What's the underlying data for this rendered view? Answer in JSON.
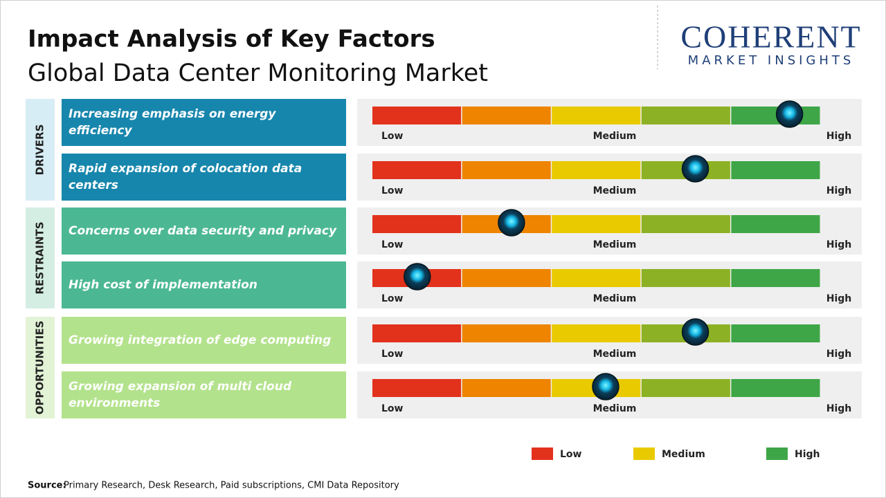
{
  "header": {
    "title": "Impact Analysis of Key Factors",
    "subtitle": "Global Data Center Monitoring Market"
  },
  "logo": {
    "name": "COHERENT",
    "tagline": "MARKET INSIGHTS"
  },
  "scale": {
    "labels": [
      "Low",
      "Medium",
      "High"
    ],
    "range": [
      0,
      100
    ],
    "colors": [
      "#e2321c",
      "#ee8400",
      "#e9ca00",
      "#8db125",
      "#3ea647"
    ]
  },
  "groups": [
    {
      "name": "DRIVERS",
      "color": "#1786ac",
      "background": "#d7edf5",
      "factors": [
        {
          "label": "Increasing emphasis on energy efficiency",
          "impact": 93
        },
        {
          "label": "Rapid expansion of colocation data centers",
          "impact": 72
        }
      ]
    },
    {
      "name": "RESTRAINTS",
      "color": "#4cb893",
      "background": "#d5eee4",
      "factors": [
        {
          "label": "Concerns over data security and privacy",
          "impact": 31
        },
        {
          "label": "High cost of implementation",
          "impact": 10
        }
      ]
    },
    {
      "name": "OPPORTUNITIES",
      "color": "#b3e28c",
      "background": "#e3f3d6",
      "factors": [
        {
          "label": "Growing integration of edge computing",
          "impact": 72
        },
        {
          "label": "Growing expansion of multi cloud environments",
          "impact": 52
        }
      ]
    }
  ],
  "legend": [
    {
      "label": "Low",
      "color": "#e2321c"
    },
    {
      "label": "Medium",
      "color": "#e9ca00"
    },
    {
      "label": "High",
      "color": "#3ea647"
    }
  ],
  "source": {
    "label": "Source:",
    "text": "Primary Research, Desk Research, Paid subscriptions, CMI Data Repository"
  }
}
